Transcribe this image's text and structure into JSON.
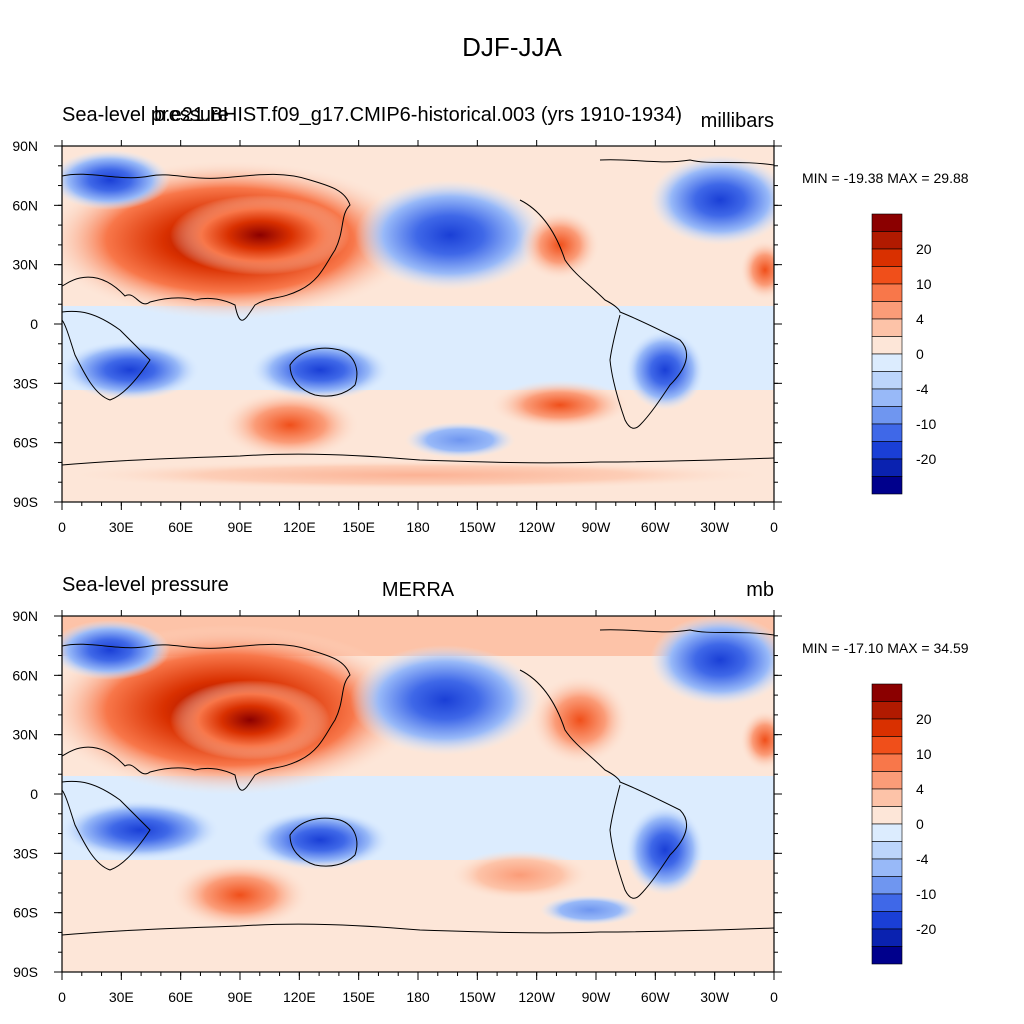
{
  "figure_title": "DJF-JJA",
  "chart_data": [
    {
      "type": "heatmap",
      "left_title": "Sea-level pressure",
      "center_title": "b.e21.BHIST.f09_g17.CMIP6-historical.003 (yrs 1910-1934)",
      "units": "millibars",
      "minmax": "MIN = -19.38 MAX =  29.88",
      "min": -19.38,
      "max": 29.88,
      "x_ticks": [
        "0",
        "30E",
        "60E",
        "90E",
        "120E",
        "150E",
        "180",
        "150W",
        "120W",
        "90W",
        "60W",
        "30W",
        "0"
      ],
      "y_ticks": [
        "90N",
        "60N",
        "30N",
        "0",
        "30S",
        "60S",
        "90S"
      ],
      "colorbar_labels": [
        "20",
        "10",
        "4",
        "0",
        "-4",
        "-10",
        "-20"
      ],
      "xlim": [
        0,
        360
      ],
      "ylim": [
        -90,
        90
      ]
    },
    {
      "type": "heatmap",
      "left_title": "Sea-level pressure",
      "center_title": "MERRA",
      "units": "mb",
      "minmax": "MIN = -17.10 MAX =  34.59",
      "min": -17.1,
      "max": 34.59,
      "x_ticks": [
        "0",
        "30E",
        "60E",
        "90E",
        "120E",
        "150E",
        "180",
        "150W",
        "120W",
        "90W",
        "60W",
        "30W",
        "0"
      ],
      "y_ticks": [
        "90N",
        "60N",
        "30N",
        "0",
        "30S",
        "60S",
        "90S"
      ],
      "colorbar_labels": [
        "20",
        "10",
        "4",
        "0",
        "-4",
        "-10",
        "-20"
      ],
      "xlim": [
        0,
        360
      ],
      "ylim": [
        -90,
        90
      ]
    }
  ],
  "colorbar_colors": [
    "#8b0000",
    "#b11a00",
    "#d93000",
    "#f04f1a",
    "#f8774a",
    "#fb9c78",
    "#fdc3a8",
    "#fde6d8",
    "#dcecfe",
    "#bcd5fb",
    "#98b9f8",
    "#6f96f0",
    "#3f68e8",
    "#1a3fd6",
    "#0a22b0",
    "#00008c"
  ],
  "colors": {
    "coastline": "#000000",
    "frame": "#000000"
  }
}
